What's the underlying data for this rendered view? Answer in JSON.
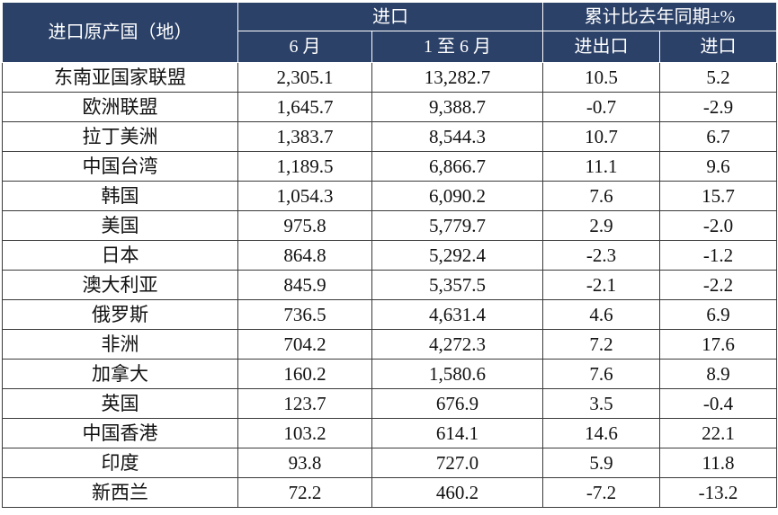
{
  "header": {
    "region_label": "进口原产国（地）",
    "import_group": "进口",
    "yoy_group": "累计比去年同期±%",
    "col_june": "6 月",
    "col_jan_jun": "1 至 6 月",
    "col_trade": "进出口",
    "col_import": "进口"
  },
  "rows": [
    {
      "name": "东南亚国家联盟",
      "june": "2,305.1",
      "ytd": "13,282.7",
      "trade": "10.5",
      "import": "5.2"
    },
    {
      "name": "欧洲联盟",
      "june": "1,645.7",
      "ytd": "9,388.7",
      "trade": "-0.7",
      "import": "-2.9"
    },
    {
      "name": "拉丁美洲",
      "june": "1,383.7",
      "ytd": "8,544.3",
      "trade": "10.7",
      "import": "6.7"
    },
    {
      "name": "中国台湾",
      "june": "1,189.5",
      "ytd": "6,866.7",
      "trade": "11.1",
      "import": "9.6"
    },
    {
      "name": "韩国",
      "june": "1,054.3",
      "ytd": "6,090.2",
      "trade": "7.6",
      "import": "15.7"
    },
    {
      "name": "美国",
      "june": "975.8",
      "ytd": "5,779.7",
      "trade": "2.9",
      "import": "-2.0"
    },
    {
      "name": "日本",
      "june": "864.8",
      "ytd": "5,292.4",
      "trade": "-2.3",
      "import": "-1.2"
    },
    {
      "name": "澳大利亚",
      "june": "845.9",
      "ytd": "5,357.5",
      "trade": "-2.1",
      "import": "-2.2"
    },
    {
      "name": "俄罗斯",
      "june": "736.5",
      "ytd": "4,631.4",
      "trade": "4.6",
      "import": "6.9"
    },
    {
      "name": "非洲",
      "june": "704.2",
      "ytd": "4,272.3",
      "trade": "7.2",
      "import": "17.6"
    },
    {
      "name": "加拿大",
      "june": "160.2",
      "ytd": "1,580.6",
      "trade": "7.6",
      "import": "8.9"
    },
    {
      "name": "英国",
      "june": "123.7",
      "ytd": "676.9",
      "trade": "3.5",
      "import": "-0.4"
    },
    {
      "name": "中国香港",
      "june": "103.2",
      "ytd": "614.1",
      "trade": "14.6",
      "import": "22.1"
    },
    {
      "name": "印度",
      "june": "93.8",
      "ytd": "727.0",
      "trade": "5.9",
      "import": "11.8"
    },
    {
      "name": "新西兰",
      "june": "72.2",
      "ytd": "460.2",
      "trade": "-7.2",
      "import": "-13.2"
    }
  ],
  "colors": {
    "header_bg": "#2b4168",
    "header_text": "#ffffff",
    "grid": "#3a3a3a"
  }
}
